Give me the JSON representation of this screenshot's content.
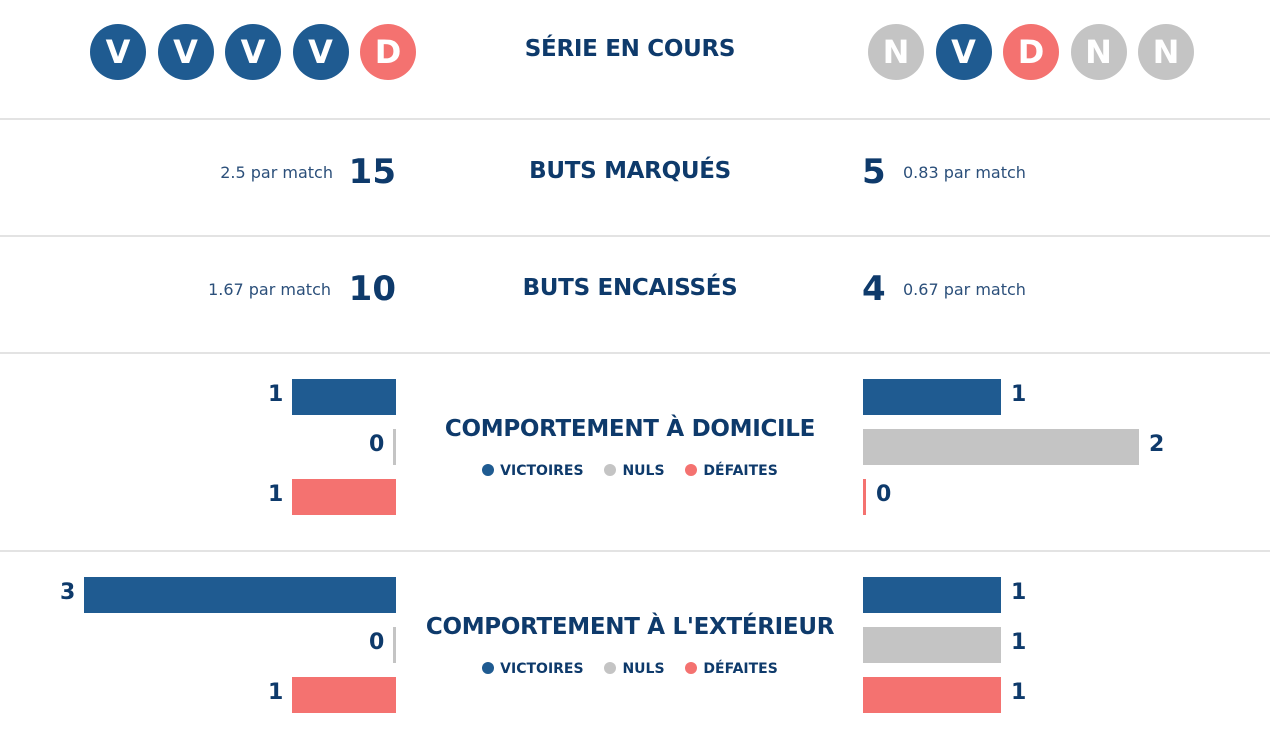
{
  "colors": {
    "win": "#1f5b91",
    "draw": "#c4c4c4",
    "loss": "#f47270",
    "text": "#0e3a6b"
  },
  "form": {
    "title": "SÉRIE EN COURS",
    "left": [
      "V",
      "V",
      "V",
      "V",
      "D"
    ],
    "right": [
      "N",
      "V",
      "D",
      "N",
      "N"
    ]
  },
  "goals_scored": {
    "title": "BUTS MARQUÉS",
    "left": {
      "total": "15",
      "per_match": "2.5 par match"
    },
    "right": {
      "total": "5",
      "per_match": "0.83 par match"
    }
  },
  "goals_conceded": {
    "title": "BUTS ENCAISSÉS",
    "left": {
      "total": "10",
      "per_match": "1.67 par match"
    },
    "right": {
      "total": "4",
      "per_match": "0.67 par match"
    }
  },
  "legend": {
    "wins": "VICTOIRES",
    "draws": "NULS",
    "losses": "DÉFAITES"
  },
  "chart_data": [
    {
      "type": "bar",
      "title": "COMPORTEMENT À DOMICILE",
      "categories": [
        "VICTOIRES",
        "NULS",
        "DÉFAITES"
      ],
      "left": [
        1,
        0,
        1
      ],
      "right": [
        1,
        2,
        0
      ]
    },
    {
      "type": "bar",
      "title": "COMPORTEMENT À L'EXTÉRIEUR",
      "categories": [
        "VICTOIRES",
        "NULS",
        "DÉFAITES"
      ],
      "left": [
        3,
        0,
        1
      ],
      "right": [
        1,
        1,
        1
      ]
    }
  ]
}
